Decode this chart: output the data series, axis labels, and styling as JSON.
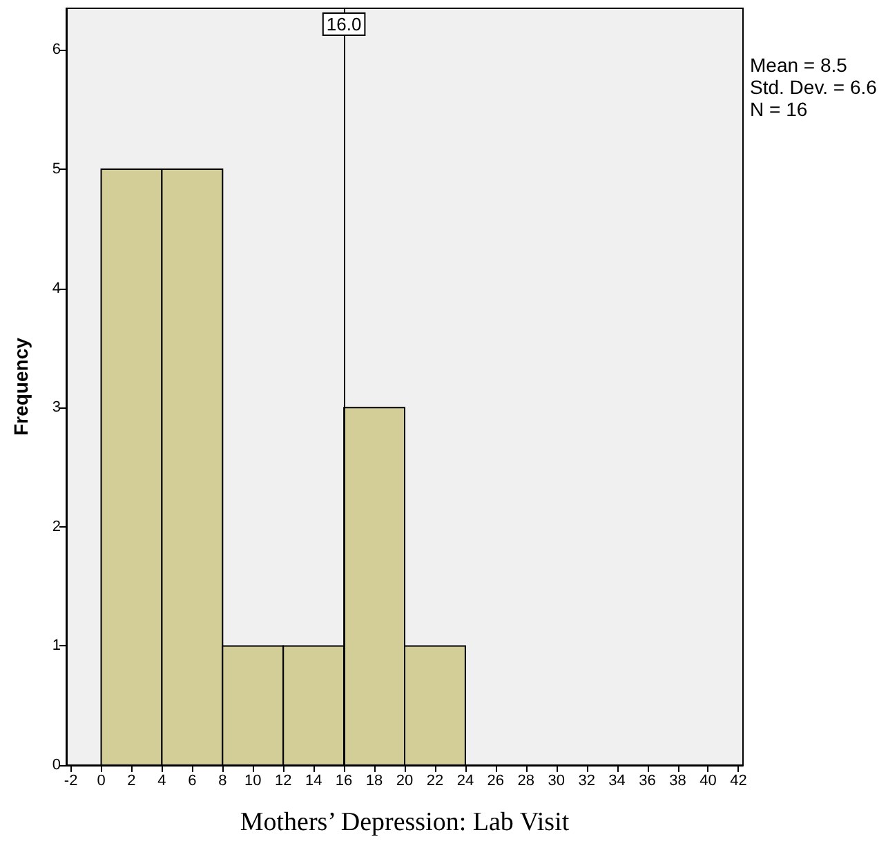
{
  "chart_data": {
    "type": "histogram",
    "xlabel": "Mothers’ Depression: Lab Visit",
    "ylabel": "Frequency",
    "bins": [
      0,
      4,
      8,
      12,
      16,
      20,
      24
    ],
    "values": [
      5,
      5,
      1,
      1,
      3,
      1
    ],
    "color": "#d3ce97",
    "xlim": [
      -2.3,
      42.3
    ],
    "xticks": [
      -2,
      0,
      2,
      4,
      6,
      8,
      10,
      12,
      14,
      16,
      18,
      20,
      22,
      24,
      26,
      28,
      30,
      32,
      34,
      36,
      38,
      40,
      42
    ],
    "ylim": [
      0,
      6.35
    ],
    "yticks": [
      0,
      1,
      2,
      3,
      4,
      5,
      6
    ],
    "ref_lines": [
      {
        "axis": "x",
        "value": 16,
        "label": "16.0"
      }
    ],
    "annotations": [
      "Mean = 8.5",
      "Std. Dev. = 6.6",
      "N = 16"
    ],
    "grid": false
  }
}
